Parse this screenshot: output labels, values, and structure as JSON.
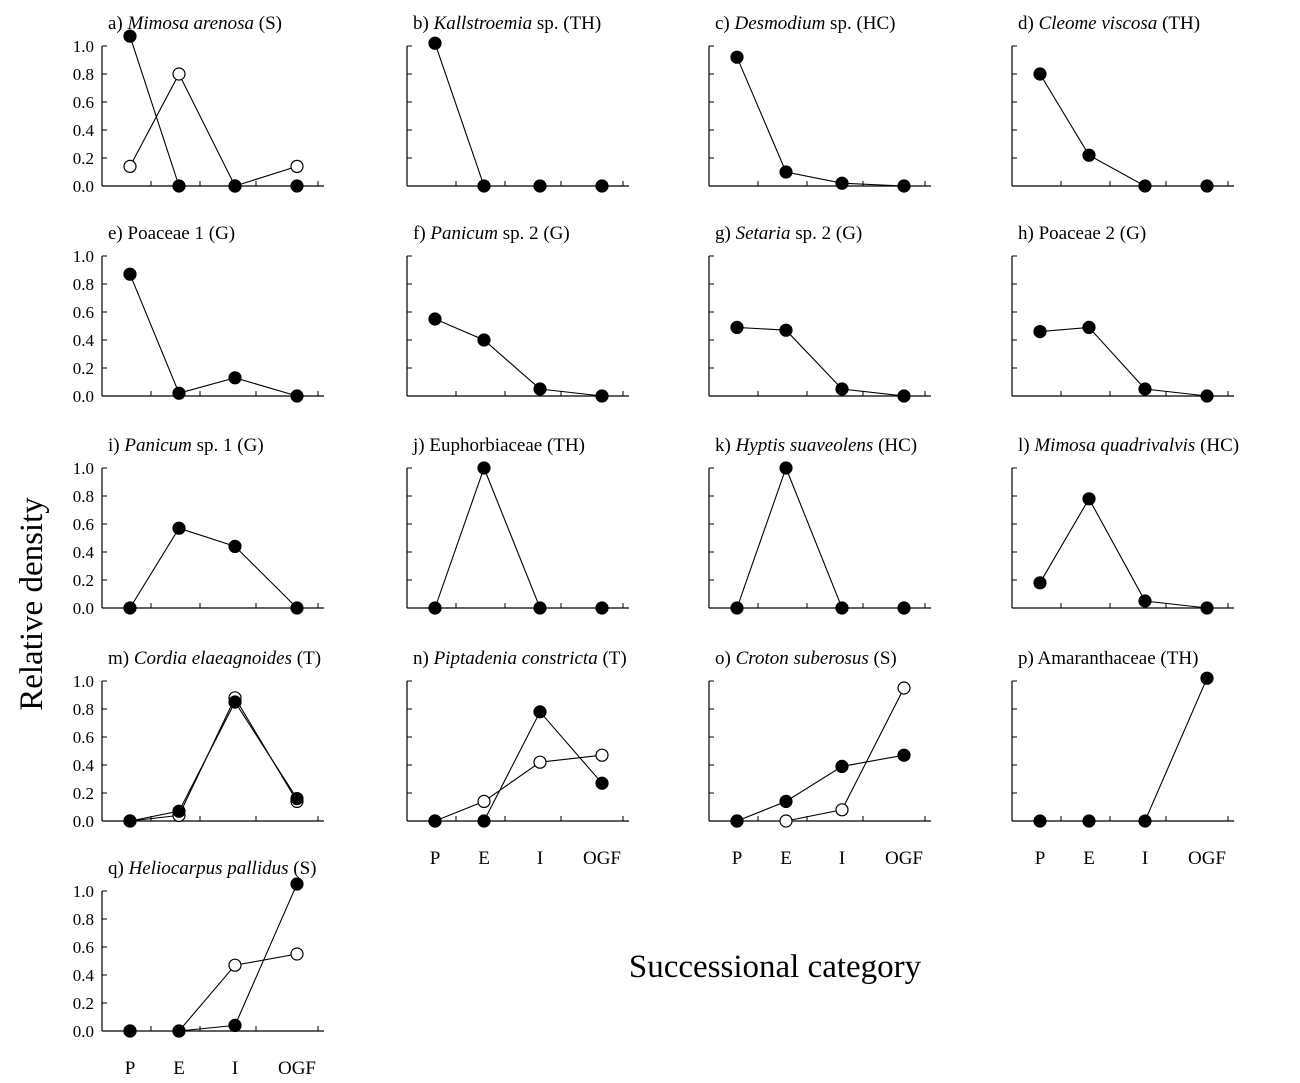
{
  "figure": {
    "ylabel": "Relative density",
    "xlabel": "Successional category",
    "categories": [
      "P",
      "E",
      "I",
      "OGF"
    ],
    "yticks": [
      "0.0",
      "0.2",
      "0.4",
      "0.6",
      "0.8",
      "1.0"
    ]
  },
  "chart_data": [
    {
      "type": "line",
      "panel": "a",
      "title_prefix": "a) ",
      "title_italic": "Mimosa arenosa",
      "title_suffix": " (S)",
      "ylim": [
        0,
        1.0
      ],
      "categories": [
        "P",
        "E",
        "I",
        "OGF"
      ],
      "series": [
        {
          "marker": "filled",
          "values": [
            1.07,
            0.0,
            0.0,
            0.0
          ]
        },
        {
          "marker": "open",
          "values": [
            0.14,
            0.8,
            0.0,
            0.14
          ]
        }
      ]
    },
    {
      "type": "line",
      "panel": "b",
      "title_prefix": "b) ",
      "title_italic": "Kallstroemia",
      "title_suffix": " sp. (TH)",
      "ylim": [
        0,
        1.0
      ],
      "categories": [
        "P",
        "E",
        "I",
        "OGF"
      ],
      "series": [
        {
          "marker": "filled",
          "values": [
            1.02,
            0.0,
            0.0,
            0.0
          ]
        }
      ]
    },
    {
      "type": "line",
      "panel": "c",
      "title_prefix": "c) ",
      "title_italic": "Desmodium",
      "title_suffix": " sp. (HC)",
      "ylim": [
        0,
        1.0
      ],
      "categories": [
        "P",
        "E",
        "I",
        "OGF"
      ],
      "series": [
        {
          "marker": "filled",
          "values": [
            0.92,
            0.1,
            0.02,
            0.0
          ]
        }
      ]
    },
    {
      "type": "line",
      "panel": "d",
      "title_prefix": "d) ",
      "title_italic": "Cleome viscosa",
      "title_suffix": " (TH)",
      "ylim": [
        0,
        1.0
      ],
      "categories": [
        "P",
        "E",
        "I",
        "OGF"
      ],
      "series": [
        {
          "marker": "filled",
          "values": [
            0.8,
            0.22,
            0.0,
            0.0
          ]
        }
      ]
    },
    {
      "type": "line",
      "panel": "e",
      "title_prefix": "e) Poaceae 1 (G)",
      "title_italic": "",
      "title_suffix": "",
      "ylim": [
        0,
        1.0
      ],
      "categories": [
        "P",
        "E",
        "I",
        "OGF"
      ],
      "series": [
        {
          "marker": "filled",
          "values": [
            0.87,
            0.02,
            0.13,
            0.0
          ]
        }
      ]
    },
    {
      "type": "line",
      "panel": "f",
      "title_prefix": "f) ",
      "title_italic": "Panicum",
      "title_suffix": " sp. 2 (G)",
      "ylim": [
        0,
        1.0
      ],
      "categories": [
        "P",
        "E",
        "I",
        "OGF"
      ],
      "series": [
        {
          "marker": "filled",
          "values": [
            0.55,
            0.4,
            0.05,
            0.0
          ]
        }
      ]
    },
    {
      "type": "line",
      "panel": "g",
      "title_prefix": "g) ",
      "title_italic": "Setaria",
      "title_suffix": " sp. 2 (G)",
      "ylim": [
        0,
        1.0
      ],
      "categories": [
        "P",
        "E",
        "I",
        "OGF"
      ],
      "series": [
        {
          "marker": "filled",
          "values": [
            0.49,
            0.47,
            0.05,
            0.0
          ]
        }
      ]
    },
    {
      "type": "line",
      "panel": "h",
      "title_prefix": "h) Poaceae 2 (G)",
      "title_italic": "",
      "title_suffix": "",
      "ylim": [
        0,
        1.0
      ],
      "categories": [
        "P",
        "E",
        "I",
        "OGF"
      ],
      "series": [
        {
          "marker": "filled",
          "values": [
            0.46,
            0.49,
            0.05,
            0.0
          ]
        }
      ]
    },
    {
      "type": "line",
      "panel": "i",
      "title_prefix": "i) ",
      "title_italic": "Panicum",
      "title_suffix": " sp. 1 (G)",
      "ylim": [
        0,
        1.0
      ],
      "categories": [
        "P",
        "E",
        "I",
        "OGF"
      ],
      "series": [
        {
          "marker": "filled",
          "values": [
            0.0,
            0.57,
            0.44,
            0.0
          ]
        }
      ]
    },
    {
      "type": "line",
      "panel": "j",
      "title_prefix": "j) Euphorbiaceae (TH)",
      "title_italic": "",
      "title_suffix": "",
      "ylim": [
        0,
        1.0
      ],
      "categories": [
        "P",
        "E",
        "I",
        "OGF"
      ],
      "series": [
        {
          "marker": "filled",
          "values": [
            0.0,
            1.0,
            0.0,
            0.0
          ]
        }
      ]
    },
    {
      "type": "line",
      "panel": "k",
      "title_prefix": "k) ",
      "title_italic": "Hyptis suaveolens",
      "title_suffix": " (HC)",
      "ylim": [
        0,
        1.0
      ],
      "categories": [
        "P",
        "E",
        "I",
        "OGF"
      ],
      "series": [
        {
          "marker": "filled",
          "values": [
            0.0,
            1.0,
            0.0,
            0.0
          ]
        }
      ]
    },
    {
      "type": "line",
      "panel": "l",
      "title_prefix": "l) ",
      "title_italic": "Mimosa quadrivalvis",
      "title_suffix": " (HC)",
      "ylim": [
        0,
        1.0
      ],
      "categories": [
        "P",
        "E",
        "I",
        "OGF"
      ],
      "series": [
        {
          "marker": "filled",
          "values": [
            0.18,
            0.78,
            0.05,
            0.0
          ]
        }
      ]
    },
    {
      "type": "line",
      "panel": "m",
      "title_prefix": "m) ",
      "title_italic": "Cordia elaeagnoides",
      "title_suffix": " (T)",
      "ylim": [
        0,
        1.0
      ],
      "categories": [
        "P",
        "E",
        "I",
        "OGF"
      ],
      "series": [
        {
          "marker": "filled",
          "values": [
            0.0,
            0.07,
            0.85,
            0.16
          ]
        },
        {
          "marker": "open",
          "values": [
            0.0,
            0.04,
            0.88,
            0.14
          ]
        }
      ]
    },
    {
      "type": "line",
      "panel": "n",
      "title_prefix": "n) ",
      "title_italic": "Piptadenia constricta",
      "title_suffix": " (T)",
      "ylim": [
        0,
        1.0
      ],
      "categories": [
        "P",
        "E",
        "I",
        "OGF"
      ],
      "series": [
        {
          "marker": "filled",
          "values": [
            0.0,
            0.0,
            0.78,
            0.27
          ]
        },
        {
          "marker": "open",
          "values": [
            0.0,
            0.14,
            0.42,
            0.47
          ]
        }
      ]
    },
    {
      "type": "line",
      "panel": "o",
      "title_prefix": "o) ",
      "title_italic": "Croton suberosus",
      "title_suffix": " (S)",
      "ylim": [
        0,
        1.0
      ],
      "categories": [
        "P",
        "E",
        "I",
        "OGF"
      ],
      "series": [
        {
          "marker": "filled",
          "values": [
            0.0,
            0.14,
            0.39,
            0.47
          ]
        },
        {
          "marker": "open",
          "values": [
            0.0,
            0.0,
            0.08,
            0.95
          ]
        }
      ]
    },
    {
      "type": "line",
      "panel": "p",
      "title_prefix": "p) Amaranthaceae (TH)",
      "title_italic": "",
      "title_suffix": "",
      "ylim": [
        0,
        1.0
      ],
      "categories": [
        "P",
        "E",
        "I",
        "OGF"
      ],
      "series": [
        {
          "marker": "filled",
          "values": [
            0.0,
            0.0,
            0.0,
            1.02
          ]
        }
      ]
    },
    {
      "type": "line",
      "panel": "q",
      "title_prefix": "q) ",
      "title_italic": "Heliocarpus pallidus",
      "title_suffix": " (S)",
      "ylim": [
        0,
        1.0
      ],
      "categories": [
        "P",
        "E",
        "I",
        "OGF"
      ],
      "series": [
        {
          "marker": "filled",
          "values": [
            0.0,
            0.0,
            0.04,
            1.05
          ]
        },
        {
          "marker": "open",
          "values": [
            0.0,
            0.0,
            0.47,
            0.55
          ]
        }
      ]
    }
  ]
}
